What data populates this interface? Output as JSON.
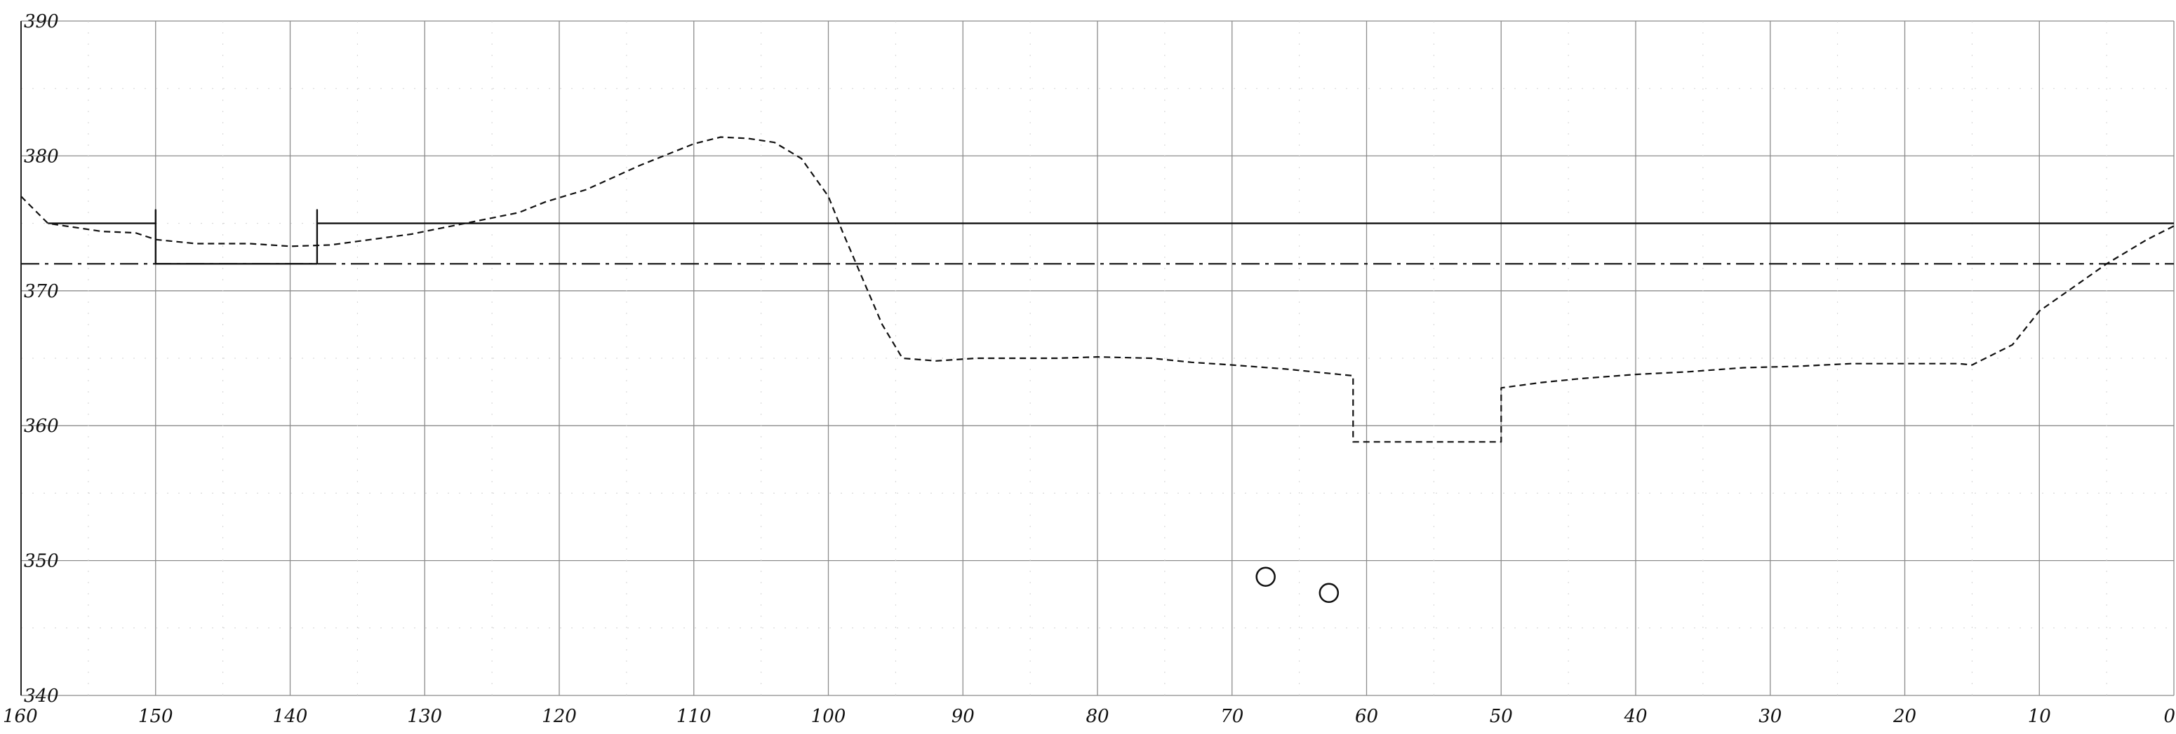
{
  "chart_data": {
    "type": "line",
    "title": "",
    "xlabel": "",
    "ylabel": "",
    "x_reversed": true,
    "xlim": [
      0,
      160
    ],
    "ylim": [
      340,
      390
    ],
    "grid": true,
    "x_ticks": [
      160,
      150,
      140,
      130,
      120,
      110,
      100,
      90,
      80,
      70,
      60,
      50,
      40,
      30,
      20,
      10,
      0
    ],
    "x_tick_labels": [
      "160",
      "150",
      "140",
      "130",
      "120",
      "110",
      "100",
      "90",
      "80",
      "70",
      "60",
      "50",
      "40",
      "30",
      "20",
      "10",
      "0"
    ],
    "y_ticks": [
      340,
      350,
      360,
      370,
      380,
      390
    ],
    "y_tick_labels": [
      "340",
      "350",
      "360",
      "370",
      "380",
      "390"
    ],
    "series": [
      {
        "style": "solid",
        "color": "#111111",
        "points": [
          [
            158,
            375
          ],
          [
            150,
            375
          ],
          [
            150,
            376
          ],
          [
            150,
            372
          ],
          [
            138,
            372
          ],
          [
            138,
            376
          ],
          [
            138,
            375
          ],
          [
            0,
            375
          ]
        ]
      },
      {
        "style": "dashed",
        "color": "#111111",
        "points": [
          [
            160,
            377
          ],
          [
            158,
            375
          ],
          [
            154,
            374.4
          ],
          [
            151.5,
            374.3
          ],
          [
            150,
            373.8
          ],
          [
            147,
            373.5
          ],
          [
            143,
            373.5
          ],
          [
            140,
            373.3
          ],
          [
            137,
            373.4
          ],
          [
            134,
            373.8
          ],
          [
            131,
            374.2
          ],
          [
            128,
            374.8
          ],
          [
            125,
            375.4
          ],
          [
            123,
            375.8
          ],
          [
            121,
            376.6
          ],
          [
            118,
            377.5
          ],
          [
            116,
            378.4
          ],
          [
            114,
            379.3
          ],
          [
            112,
            380.1
          ],
          [
            110,
            380.9
          ],
          [
            108,
            381.4
          ],
          [
            106,
            381.3
          ],
          [
            104,
            381
          ],
          [
            102,
            379.8
          ],
          [
            100,
            377
          ],
          [
            99,
            374.5
          ],
          [
            97.5,
            371
          ],
          [
            96,
            367.5
          ],
          [
            94.5,
            365
          ],
          [
            92,
            364.8
          ],
          [
            89,
            365
          ],
          [
            86,
            365
          ],
          [
            83,
            365
          ],
          [
            80,
            365.1
          ],
          [
            76,
            365
          ],
          [
            73,
            364.7
          ],
          [
            70,
            364.5
          ],
          [
            66,
            364.2
          ],
          [
            63,
            363.9
          ],
          [
            61,
            363.7
          ],
          [
            61,
            358.8
          ],
          [
            50,
            358.8
          ],
          [
            50,
            362.8
          ],
          [
            47,
            363.2
          ],
          [
            44,
            363.5
          ],
          [
            40,
            363.8
          ],
          [
            36,
            364
          ],
          [
            32,
            364.3
          ],
          [
            28,
            364.4
          ],
          [
            24,
            364.6
          ],
          [
            20,
            364.6
          ],
          [
            16,
            364.6
          ],
          [
            15,
            364.5
          ],
          [
            12,
            366
          ],
          [
            10,
            368.5
          ],
          [
            7,
            370.6
          ],
          [
            5,
            372
          ],
          [
            2,
            373.8
          ],
          [
            0,
            374.8
          ]
        ]
      },
      {
        "style": "dash-dot",
        "color": "#111111",
        "points": [
          [
            160,
            372
          ],
          [
            0,
            372
          ]
        ]
      },
      {
        "style": "markers",
        "color": "#111111",
        "points": [
          [
            67.5,
            348.8
          ],
          [
            62.8,
            347.6
          ]
        ]
      }
    ]
  }
}
